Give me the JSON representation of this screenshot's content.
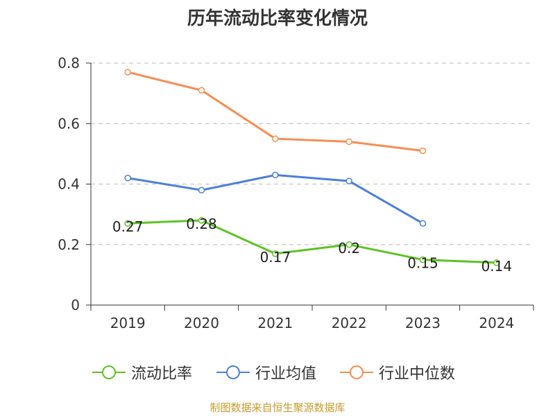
{
  "title": "历年流动比率变化情况",
  "source": "制图数据来自恒生聚源数据库",
  "chart_data": {
    "type": "line",
    "categories": [
      "2019",
      "2020",
      "2021",
      "2022",
      "2023",
      "2024"
    ],
    "ylim": [
      0,
      0.8
    ],
    "yticks": [
      0,
      0.2,
      0.4,
      0.6,
      0.8
    ],
    "ytick_labels": [
      "0",
      "0.2",
      "0.4",
      "0.6",
      "0.8"
    ],
    "grid": true,
    "legend_position": "bottom",
    "series": [
      {
        "name": "流动比率",
        "color": "#5cc421",
        "values": [
          0.27,
          0.28,
          0.17,
          0.2,
          0.15,
          0.14
        ],
        "labels": [
          "0.27",
          "0.28",
          "0.17",
          "0.2",
          "0.15",
          "0.14"
        ],
        "show_labels": true
      },
      {
        "name": "行业均值",
        "color": "#4a80dd",
        "values": [
          0.42,
          0.38,
          0.43,
          0.41,
          0.27,
          null
        ],
        "show_labels": false
      },
      {
        "name": "行业中位数",
        "color": "#fa8c50",
        "values": [
          0.77,
          0.71,
          0.55,
          0.54,
          0.51,
          null
        ],
        "show_labels": false
      }
    ]
  }
}
